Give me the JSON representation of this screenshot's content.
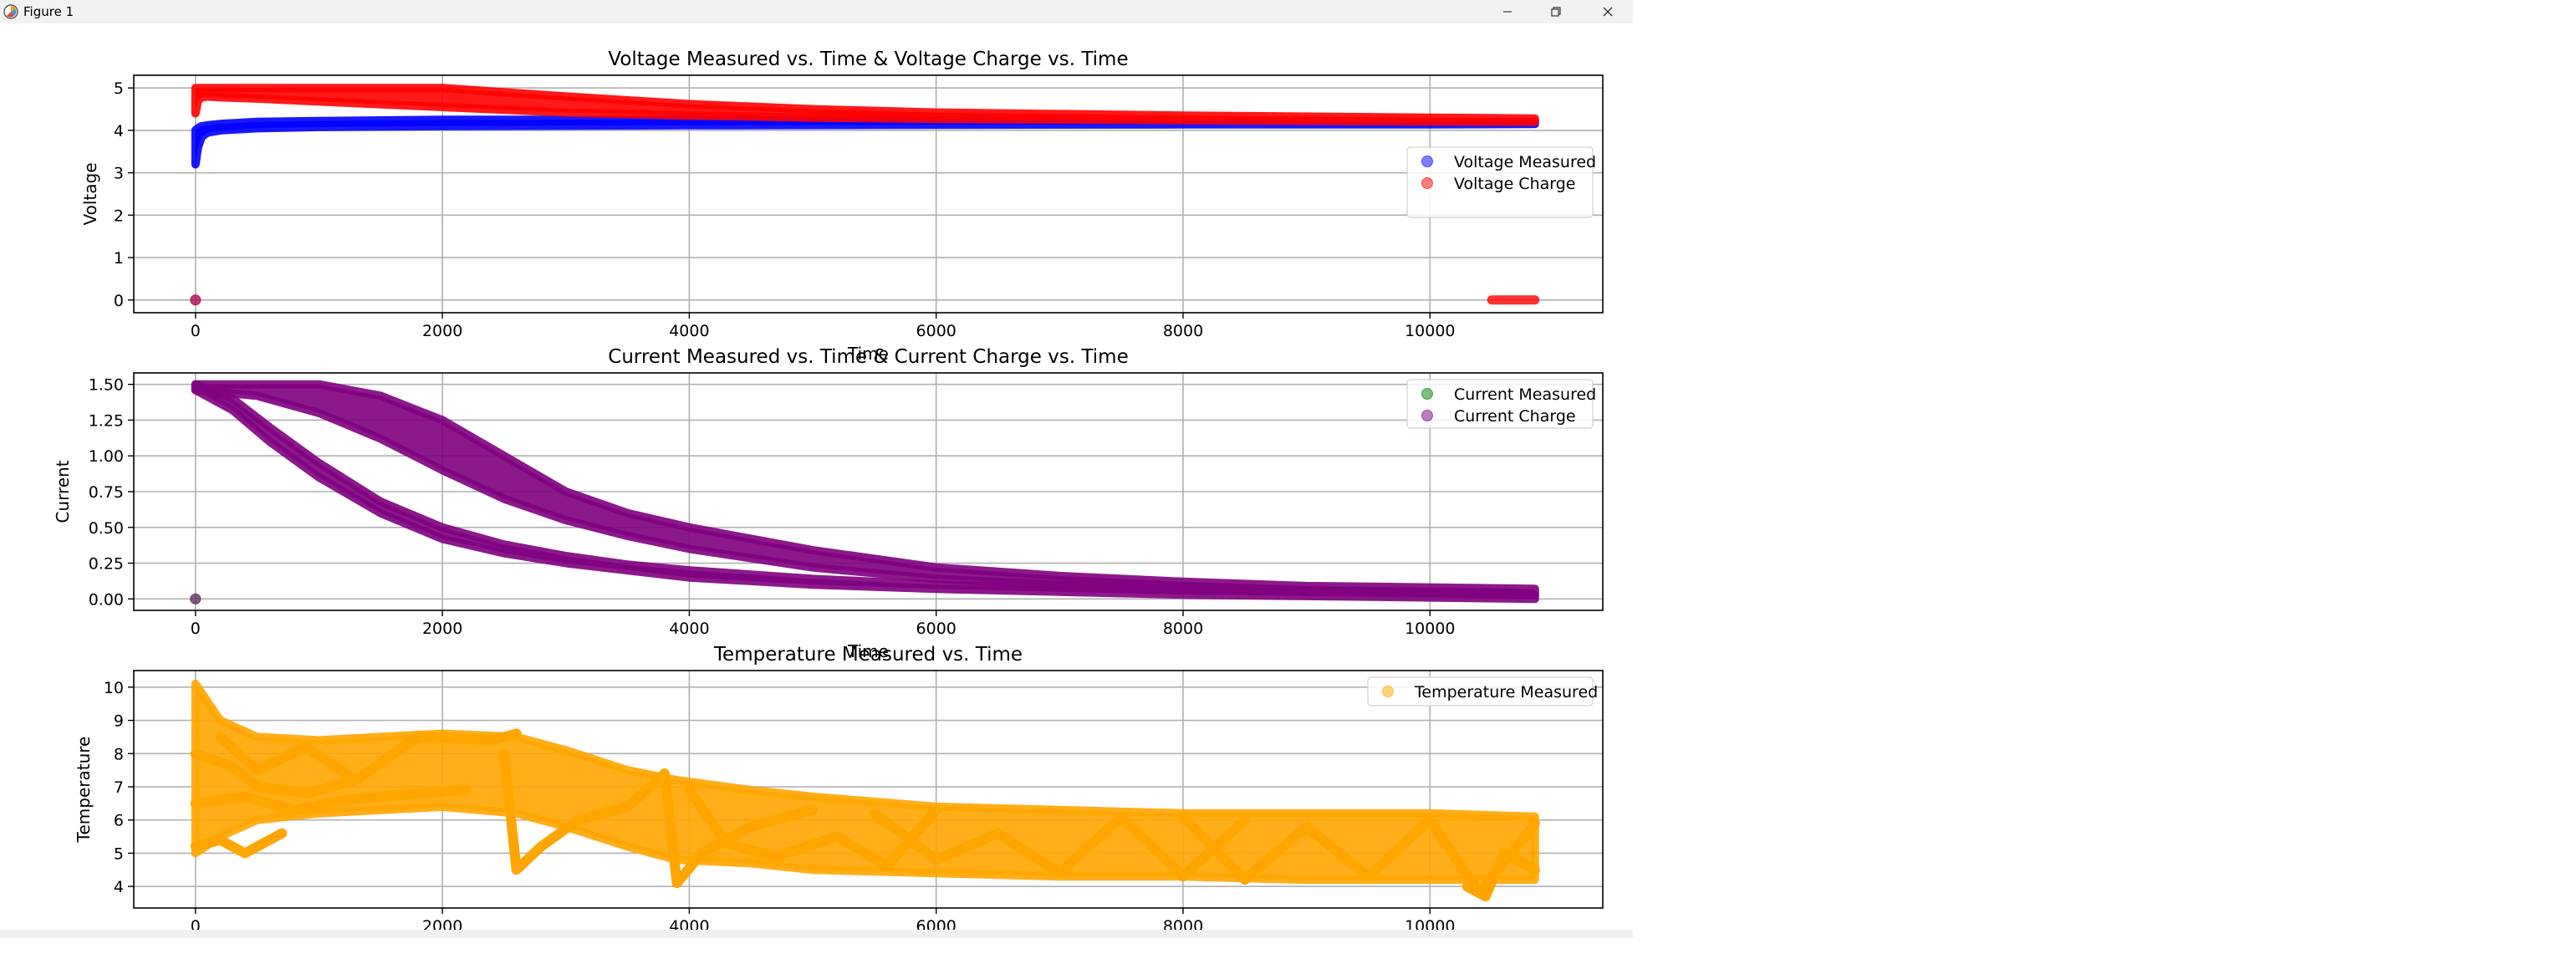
{
  "window": {
    "title": "Figure 1",
    "icons": {
      "app": "matplotlib-icon",
      "minimize": "minimize-icon",
      "maximize": "restore-icon",
      "close": "close-icon"
    }
  },
  "chart_data": [
    {
      "type": "scatter",
      "title": "Voltage Measured vs. Time & Voltage Charge vs. Time",
      "xlabel": "Time",
      "ylabel": "Voltage",
      "xlim": [
        -500,
        11400
      ],
      "ylim": [
        -0.3,
        5.3
      ],
      "xticks": [
        0,
        2000,
        4000,
        6000,
        8000,
        10000
      ],
      "yticks": [
        0,
        1,
        2,
        3,
        4,
        5
      ],
      "grid": true,
      "legend": "center-right",
      "series": [
        {
          "name": "Voltage Measured",
          "color": "#0000ff",
          "alpha": 0.5,
          "bands": [
            {
              "x": [
                0,
                20,
                50,
                100,
                200,
                500,
                1000,
                2000,
                4000,
                6000,
                8000,
                10000,
                10850
              ],
              "lower": [
                3.2,
                3.6,
                3.85,
                3.95,
                4.0,
                4.05,
                4.08,
                4.1,
                4.12,
                4.13,
                4.14,
                4.14,
                4.15
              ],
              "upper": [
                4.0,
                4.05,
                4.1,
                4.12,
                4.15,
                4.2,
                4.22,
                4.25,
                4.25,
                4.22,
                4.2,
                4.2,
                4.2
              ]
            }
          ],
          "points": [
            {
              "x": 0,
              "y": 0
            }
          ]
        },
        {
          "name": "Voltage Charge",
          "color": "#ff0000",
          "alpha": 0.5,
          "bands": [
            {
              "x": [
                0,
                20,
                50,
                100,
                200,
                500,
                1000,
                2000,
                3000,
                4000,
                5000,
                6000,
                8000,
                10000,
                10850
              ],
              "lower": [
                4.4,
                4.7,
                4.78,
                4.8,
                4.78,
                4.75,
                4.68,
                4.55,
                4.42,
                4.35,
                4.3,
                4.27,
                4.24,
                4.21,
                4.2
              ],
              "upper": [
                5.0,
                5.0,
                5.0,
                5.0,
                5.0,
                5.0,
                5.0,
                5.0,
                4.8,
                4.62,
                4.5,
                4.42,
                4.35,
                4.3,
                4.28
              ]
            }
          ],
          "points": [
            {
              "x": 0,
              "y": 0
            }
          ],
          "segments": [
            {
              "x": [
                10500,
                10850
              ],
              "y": 0
            }
          ]
        }
      ]
    },
    {
      "type": "scatter",
      "title": "Current Measured vs. Time & Current Charge vs. Time",
      "xlabel": "Time",
      "ylabel": "Current",
      "xlim": [
        -500,
        11400
      ],
      "ylim": [
        -0.08,
        1.58
      ],
      "xticks": [
        0,
        2000,
        4000,
        6000,
        8000,
        10000
      ],
      "yticks": [
        0.0,
        0.25,
        0.5,
        0.75,
        1.0,
        1.25,
        1.5
      ],
      "ytick_labels": [
        "0.00",
        "0.25",
        "0.50",
        "0.75",
        "1.00",
        "1.25",
        "1.50"
      ],
      "grid": true,
      "legend": "top-right",
      "series": [
        {
          "name": "Current Measured",
          "color": "#008000",
          "alpha": 0.5,
          "points": [
            {
              "x": 0,
              "y": 0
            }
          ]
        },
        {
          "name": "Current Charge",
          "color": "#800080",
          "alpha": 0.5,
          "bands": [
            {
              "x": [
                0,
                300,
                600,
                1000,
                1500,
                2000,
                2500,
                3000,
                3500,
                4000,
                5000,
                6000,
                7000,
                8000,
                9000,
                10000,
                10850
              ],
              "lower": [
                1.46,
                1.32,
                1.1,
                0.85,
                0.6,
                0.42,
                0.32,
                0.25,
                0.2,
                0.15,
                0.1,
                0.07,
                0.05,
                0.03,
                0.02,
                0.01,
                0.0
              ],
              "upper": [
                1.5,
                1.4,
                1.2,
                0.95,
                0.68,
                0.5,
                0.38,
                0.3,
                0.24,
                0.2,
                0.14,
                0.1,
                0.08,
                0.06,
                0.05,
                0.04,
                0.03
              ]
            },
            {
              "x": [
                0,
                500,
                1000,
                1500,
                2000,
                2500,
                3000,
                3500,
                4000,
                5000,
                6000,
                7000,
                8000,
                9000,
                10000,
                10850
              ],
              "lower": [
                1.46,
                1.42,
                1.3,
                1.12,
                0.9,
                0.7,
                0.55,
                0.44,
                0.35,
                0.22,
                0.14,
                0.1,
                0.07,
                0.05,
                0.04,
                0.03
              ],
              "upper": [
                1.5,
                1.5,
                1.5,
                1.42,
                1.25,
                1.0,
                0.75,
                0.6,
                0.5,
                0.34,
                0.22,
                0.16,
                0.12,
                0.09,
                0.08,
                0.07
              ]
            }
          ],
          "points": [
            {
              "x": 0,
              "y": 0
            }
          ]
        }
      ]
    },
    {
      "type": "scatter",
      "title": "Temperature Measured vs. Time",
      "xlabel": "Time",
      "ylabel": "Temperature",
      "xlim": [
        -500,
        11400
      ],
      "ylim": [
        3.35,
        10.5
      ],
      "xticks": [
        0,
        2000,
        4000,
        6000,
        8000,
        10000
      ],
      "yticks": [
        4,
        5,
        6,
        7,
        8,
        9,
        10
      ],
      "grid": true,
      "legend": "top-right",
      "series": [
        {
          "name": "Temperature Measured",
          "color": "#ffa500",
          "alpha": 0.5,
          "bands": [
            {
              "x": [
                0,
                200,
                500,
                1000,
                1500,
                2000,
                2600,
                3000,
                3500,
                3900,
                4500,
                5000,
                6000,
                7000,
                8000,
                9000,
                10000,
                10850
              ],
              "lower": [
                5.0,
                5.5,
                6.0,
                6.2,
                6.3,
                6.4,
                6.2,
                5.8,
                5.2,
                4.8,
                4.7,
                4.5,
                4.4,
                4.3,
                4.3,
                4.2,
                4.2,
                4.2
              ],
              "upper": [
                10.1,
                9.0,
                8.5,
                8.4,
                8.5,
                8.6,
                8.5,
                8.1,
                7.5,
                7.2,
                6.9,
                6.7,
                6.4,
                6.3,
                6.2,
                6.2,
                6.2,
                6.1
              ]
            }
          ],
          "lines": [
            {
              "x": [
                0,
                300,
                500,
                900,
                1300
              ],
              "y": [
                8.0,
                7.6,
                7.0,
                6.8,
                7.2
              ]
            },
            {
              "x": [
                0,
                400,
                800,
                1200,
                1800,
                2200
              ],
              "y": [
                6.5,
                6.7,
                6.3,
                6.6,
                6.8,
                6.9
              ]
            },
            {
              "x": [
                0,
                200,
                400,
                700
              ],
              "y": [
                5.2,
                5.4,
                5.0,
                5.6
              ]
            },
            {
              "x": [
                200,
                500,
                900,
                1300,
                1800,
                2400,
                2600
              ],
              "y": [
                8.5,
                7.5,
                8.2,
                7.2,
                8.5,
                8.4,
                8.6
              ]
            },
            {
              "x": [
                2500,
                2600,
                2800,
                3100,
                3500,
                3800
              ],
              "y": [
                8.0,
                4.5,
                5.2,
                6.0,
                6.4,
                7.4
              ]
            },
            {
              "x": [
                3800,
                3900,
                4100,
                4500,
                5000
              ],
              "y": [
                7.4,
                4.1,
                5.0,
                5.8,
                6.3
              ]
            },
            {
              "x": [
                4000,
                4300,
                4700,
                5200,
                5600,
                6000
              ],
              "y": [
                6.9,
                5.3,
                4.9,
                5.5,
                4.6,
                6.3
              ]
            },
            {
              "x": [
                5500,
                6000,
                6500,
                7000,
                7500,
                8000,
                8500
              ],
              "y": [
                6.2,
                4.8,
                5.6,
                4.4,
                6.1,
                4.3,
                6.0
              ]
            },
            {
              "x": [
                8000,
                8500,
                9000,
                9500,
                10000,
                10400,
                10850
              ],
              "y": [
                6.1,
                4.2,
                5.8,
                4.3,
                6.0,
                3.8,
                5.9
              ]
            },
            {
              "x": [
                10300,
                10450,
                10600,
                10850
              ],
              "y": [
                4.0,
                3.7,
                5.0,
                4.5
              ]
            }
          ]
        }
      ]
    }
  ]
}
